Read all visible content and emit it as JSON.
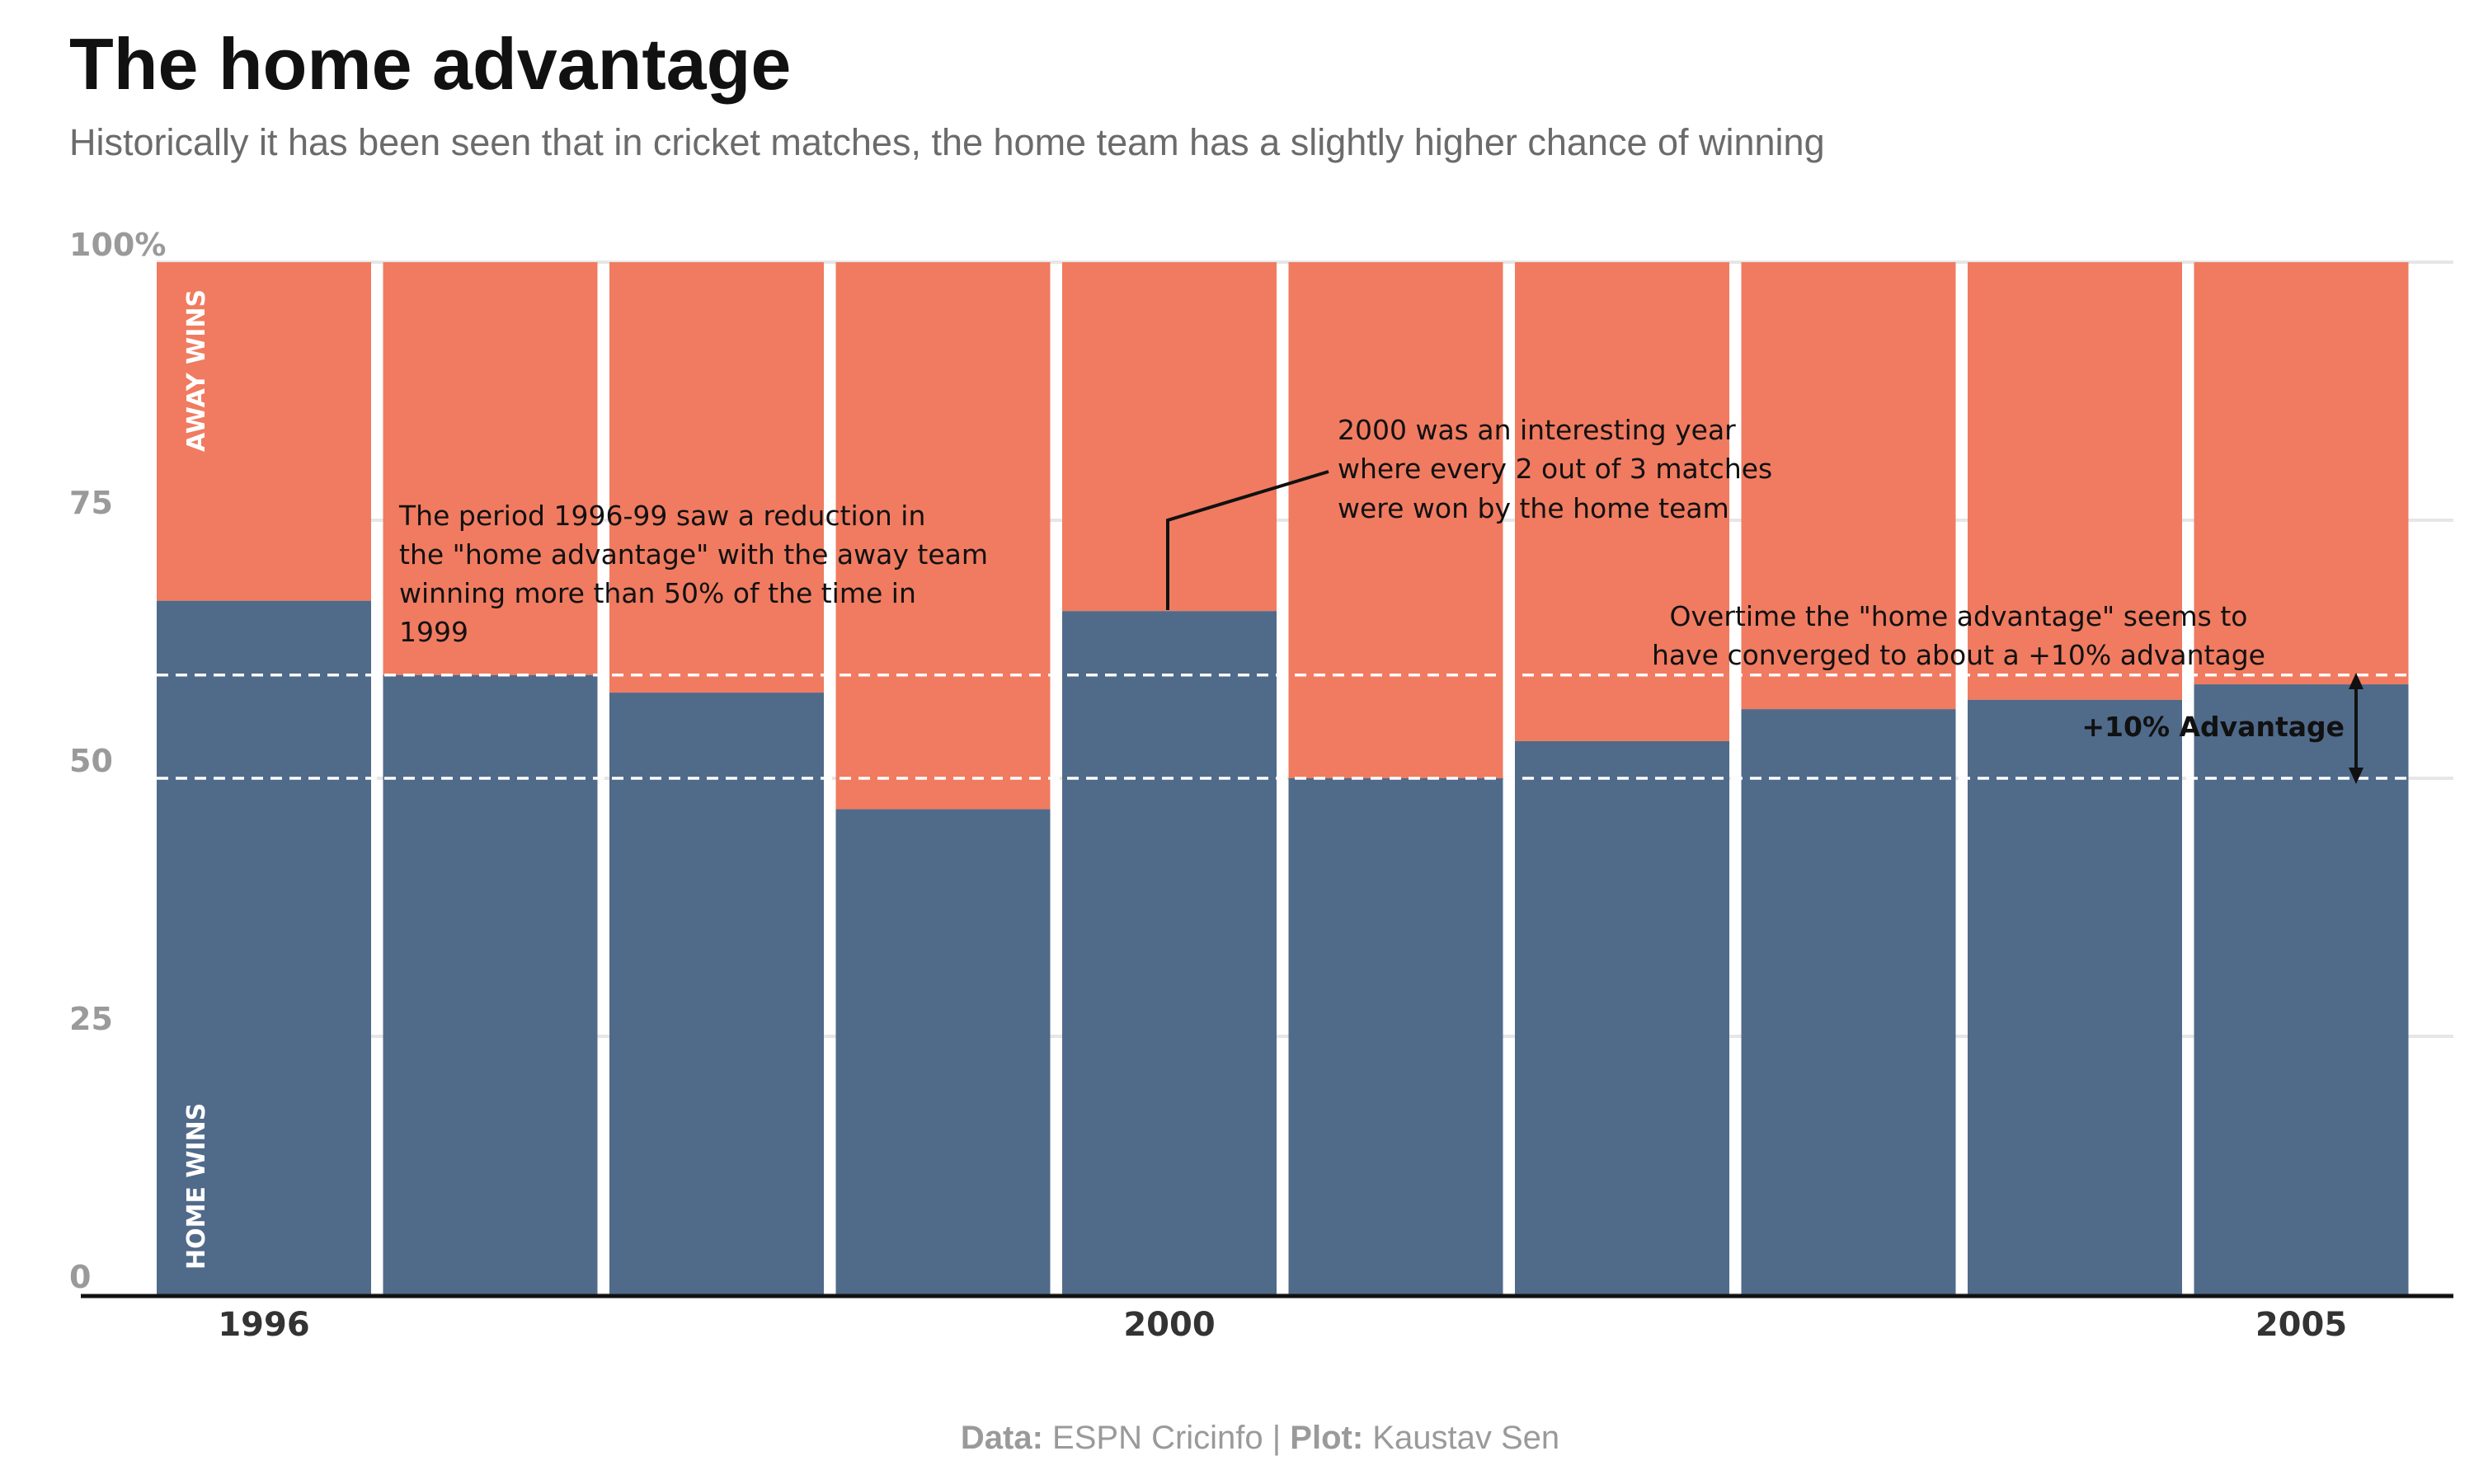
{
  "chart_data": {
    "type": "bar",
    "title": "The home advantage",
    "subtitle": "Historically it has been seen that in cricket matches, the home team has a slightly higher chance of winning",
    "categories": [
      "1996",
      "1997",
      "1998",
      "1999",
      "2000",
      "2001",
      "2002",
      "2003",
      "2004",
      "2005"
    ],
    "x_tick_labels": [
      {
        "category": "1996",
        "label": "1996"
      },
      {
        "category": "2000",
        "label": "2000"
      },
      {
        "category": "2005",
        "label": "2005"
      }
    ],
    "y_tick_labels": [
      "0",
      "25",
      "50",
      "75",
      "100%"
    ],
    "ylim": [
      0,
      100
    ],
    "y_ticks": [
      0,
      25,
      50,
      75,
      100
    ],
    "grid": true,
    "stacked": true,
    "series": [
      {
        "name": "HOME WINS",
        "color": "#506a8a",
        "values": [
          67.2,
          60.0,
          58.3,
          47.0,
          66.2,
          50.0,
          53.6,
          56.7,
          57.6,
          59.1
        ]
      },
      {
        "name": "AWAY WINS",
        "color": "#f07b60",
        "values": [
          32.8,
          40.0,
          41.7,
          53.0,
          33.8,
          50.0,
          46.4,
          43.3,
          42.4,
          40.9
        ]
      }
    ],
    "reference_lines": [
      {
        "y": 50,
        "style": "dashed"
      },
      {
        "y": 60,
        "style": "dashed"
      }
    ],
    "annotations": [
      {
        "id": "period",
        "lines": [
          "The period 1996-99 saw a reduction in",
          "the \"home advantage\" with the away team",
          "winning more than 50% of the time in",
          "1999"
        ]
      },
      {
        "id": "y2000",
        "lines": [
          "2000 was an interesting year",
          "where every 2 out of 3 matches",
          "were won by the home team"
        ]
      },
      {
        "id": "overtime",
        "lines": [
          "Overtime the \"home advantage\" seems to",
          "have converged to about a +10% advantage"
        ]
      },
      {
        "id": "advantage",
        "text": "+10% Advantage"
      }
    ]
  },
  "caption": {
    "data_label": "Data:",
    "data_value": "ESPN Cricinfo",
    "separator": "|",
    "plot_label": "Plot:",
    "plot_value": "Kaustav Sen"
  }
}
